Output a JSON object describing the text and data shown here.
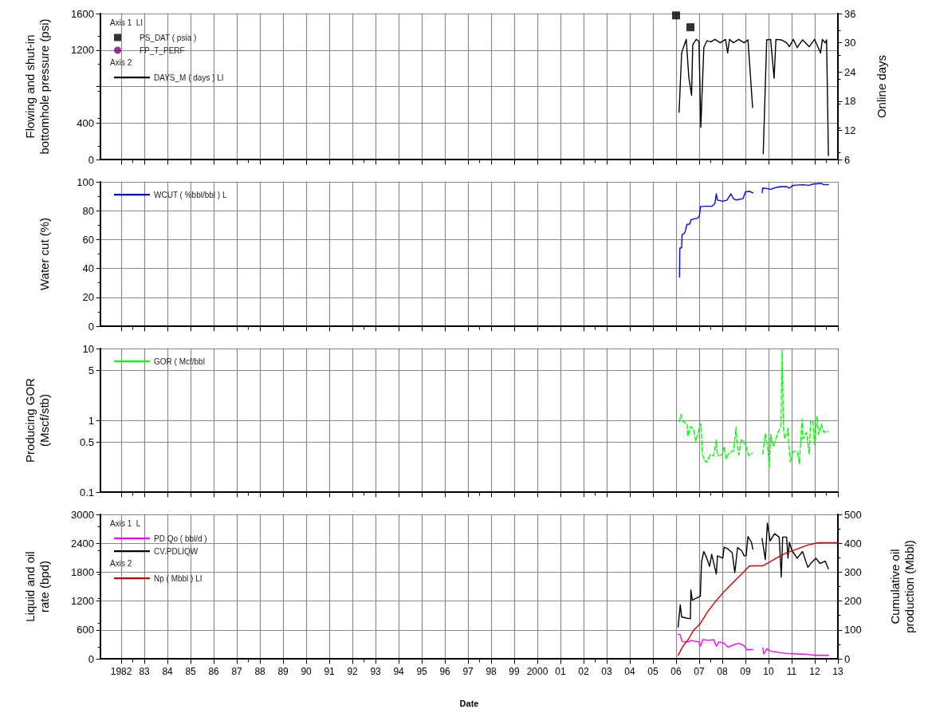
{
  "chart_data": [
    {
      "type": "line",
      "ylabel": "Flowing and shut-in\nbottomhole pressure (psi)",
      "y2label": "Online days",
      "xlim": [
        1981.1,
        2013
      ],
      "xticks": [
        {
          "value": 1982,
          "label": null
        },
        {
          "value": 1983,
          "label": null
        },
        {
          "value": 1984,
          "label": null
        },
        {
          "value": 1985,
          "label": null
        },
        {
          "value": 1986,
          "label": null
        },
        {
          "value": 1987,
          "label": null
        },
        {
          "value": 1988,
          "label": null
        },
        {
          "value": 1989,
          "label": null
        },
        {
          "value": 1990,
          "label": null
        },
        {
          "value": 1991,
          "label": null
        },
        {
          "value": 1992,
          "label": null
        },
        {
          "value": 1993,
          "label": null
        },
        {
          "value": 1994,
          "label": null
        },
        {
          "value": 1995,
          "label": null
        },
        {
          "value": 1996,
          "label": null
        },
        {
          "value": 1997,
          "label": null
        },
        {
          "value": 1998,
          "label": null
        },
        {
          "value": 1999,
          "label": null
        },
        {
          "value": 2000,
          "label": null
        },
        {
          "value": 2001,
          "label": null
        },
        {
          "value": 2002,
          "label": null
        },
        {
          "value": 2003,
          "label": null
        },
        {
          "value": 2004,
          "label": null
        },
        {
          "value": 2005,
          "label": null
        },
        {
          "value": 2006,
          "label": null
        },
        {
          "value": 2007,
          "label": null
        },
        {
          "value": 2008,
          "label": null
        },
        {
          "value": 2009,
          "label": null
        },
        {
          "value": 2010,
          "label": null
        },
        {
          "value": 2011,
          "label": null
        },
        {
          "value": 2012,
          "label": null
        },
        {
          "value": 2013,
          "label": null
        }
      ],
      "ylim": [
        0,
        1600
      ],
      "yticks": [
        0,
        400,
        {
          "value": 800,
          "label": null
        },
        1200,
        1600
      ],
      "y2lim": [
        6,
        36
      ],
      "y2ticks": [
        6,
        12,
        18,
        24,
        30,
        36
      ],
      "grid": true,
      "legend": "top left",
      "tick_labels": "y",
      "annotations": [
        "Axis 1  LI",
        "Axis 2"
      ],
      "series": [
        {
          "name": "PS_DAT ( psia )",
          "type": "scatter",
          "marker": "square",
          "color": "#000000",
          "x": [
            2006.0,
            2006.62
          ],
          "values": [
            1580,
            1450
          ]
        },
        {
          "name": "FP_T_PERF",
          "type": "scatter",
          "marker": "circle",
          "color": "#800080"
        },
        {
          "name": "DAYS_M ( days ) LI",
          "axis": "y2",
          "marker": "none",
          "color": "#000000",
          "x": [
            2006.13,
            2006.24,
            2006.3,
            2006.44,
            2006.55,
            2006.67,
            2006.72,
            2006.87,
            2006.99,
            2007.07,
            2007.2,
            2007.33,
            2007.51,
            2007.68,
            2007.91,
            2008.14,
            2008.23,
            2008.31,
            2008.48,
            2008.71,
            2008.94,
            2009.11,
            2009.31,
            2009.5,
            2009.77,
            2009.92,
            2010.09,
            2010.24,
            2010.32,
            2010.55,
            2010.78,
            2010.9,
            2011.07,
            2011.24,
            2011.47,
            2011.76,
            2011.99,
            2012.25,
            2012.33,
            2012.45,
            2012.51,
            2012.59
          ],
          "values": [
            15.7,
            27.9,
            28.8,
            30.7,
            22.9,
            19.2,
            29.6,
            30.7,
            30.3,
            12.6,
            29.0,
            30.4,
            30.2,
            30.7,
            30.0,
            30.7,
            27.9,
            30.7,
            30.0,
            30.7,
            30.0,
            30.6,
            16.7,
            null,
            7.2,
            30.6,
            30.7,
            22.7,
            30.7,
            30.6,
            30.0,
            29.2,
            30.7,
            29.0,
            30.6,
            29.2,
            30.7,
            27.9,
            30.7,
            30.0,
            30.6,
            6.8
          ]
        }
      ]
    },
    {
      "type": "line",
      "ylabel": "Water cut (%)",
      "xlim": [
        1981.1,
        2013
      ],
      "xticks": [
        {
          "value": 1982,
          "label": null
        },
        {
          "value": 1983,
          "label": null
        },
        {
          "value": 1984,
          "label": null
        },
        {
          "value": 1985,
          "label": null
        },
        {
          "value": 1986,
          "label": null
        },
        {
          "value": 1987,
          "label": null
        },
        {
          "value": 1988,
          "label": null
        },
        {
          "value": 1989,
          "label": null
        },
        {
          "value": 1990,
          "label": null
        },
        {
          "value": 1991,
          "label": null
        },
        {
          "value": 1992,
          "label": null
        },
        {
          "value": 1993,
          "label": null
        },
        {
          "value": 1994,
          "label": null
        },
        {
          "value": 1995,
          "label": null
        },
        {
          "value": 1996,
          "label": null
        },
        {
          "value": 1997,
          "label": null
        },
        {
          "value": 1998,
          "label": null
        },
        {
          "value": 1999,
          "label": null
        },
        {
          "value": 2000,
          "label": null
        },
        {
          "value": 2001,
          "label": null
        },
        {
          "value": 2002,
          "label": null
        },
        {
          "value": 2003,
          "label": null
        },
        {
          "value": 2004,
          "label": null
        },
        {
          "value": 2005,
          "label": null
        },
        {
          "value": 2006,
          "label": null
        },
        {
          "value": 2007,
          "label": null
        },
        {
          "value": 2008,
          "label": null
        },
        {
          "value": 2009,
          "label": null
        },
        {
          "value": 2010,
          "label": null
        },
        {
          "value": 2011,
          "label": null
        },
        {
          "value": 2012,
          "label": null
        },
        {
          "value": 2013,
          "label": null
        }
      ],
      "ylim": [
        0,
        100
      ],
      "yticks": [
        0,
        20,
        40,
        60,
        80,
        100
      ],
      "grid": true,
      "legend": "top left",
      "tick_labels": "y",
      "marker": "none",
      "series": [
        {
          "name": "WCUT ( %bbl/bbl ) L",
          "color": "#0000ff",
          "x": [
            2006.15,
            2006.16,
            2006.24,
            2006.26,
            2006.36,
            2006.41,
            2006.47,
            2006.59,
            2006.64,
            2006.76,
            2006.93,
            2007.01,
            2007.05,
            2007.22,
            2007.56,
            2007.68,
            2007.74,
            2007.79,
            2008.02,
            2008.2,
            2008.37,
            2008.48,
            2008.6,
            2008.89,
            2009.0,
            2009.17,
            2009.32,
            2009.5,
            2009.72,
            2009.75,
            2009.92,
            2010.09,
            2010.32,
            2010.55,
            2010.78,
            2010.9,
            2011.07,
            2011.47,
            2011.76,
            2011.93,
            2012.28,
            2012.39,
            2012.59
          ],
          "values": [
            34,
            54,
            54.4,
            63.3,
            64.3,
            66.5,
            70.6,
            70.7,
            73.5,
            74.4,
            74.8,
            76.3,
            82.8,
            83.1,
            83.1,
            85,
            91.7,
            87.4,
            86.5,
            87.4,
            91.7,
            88.3,
            87.4,
            88.3,
            93,
            93.5,
            92.4,
            null,
            92.4,
            95.7,
            95.4,
            94.8,
            96.1,
            96.7,
            96.7,
            95.7,
            97.6,
            98,
            97.6,
            98.5,
            98.9,
            98,
            98.1
          ]
        }
      ]
    },
    {
      "type": "line",
      "ylabel": "Producing GOR\n(Mscf/stb)",
      "xlim": [
        1981.1,
        2013
      ],
      "xticks": [
        {
          "value": 1982,
          "label": null
        },
        {
          "value": 1983,
          "label": null
        },
        {
          "value": 1984,
          "label": null
        },
        {
          "value": 1985,
          "label": null
        },
        {
          "value": 1986,
          "label": null
        },
        {
          "value": 1987,
          "label": null
        },
        {
          "value": 1988,
          "label": null
        },
        {
          "value": 1989,
          "label": null
        },
        {
          "value": 1990,
          "label": null
        },
        {
          "value": 1991,
          "label": null
        },
        {
          "value": 1992,
          "label": null
        },
        {
          "value": 1993,
          "label": null
        },
        {
          "value": 1994,
          "label": null
        },
        {
          "value": 1995,
          "label": null
        },
        {
          "value": 1996,
          "label": null
        },
        {
          "value": 1997,
          "label": null
        },
        {
          "value": 1998,
          "label": null
        },
        {
          "value": 1999,
          "label": null
        },
        {
          "value": 2000,
          "label": null
        },
        {
          "value": 2001,
          "label": null
        },
        {
          "value": 2002,
          "label": null
        },
        {
          "value": 2003,
          "label": null
        },
        {
          "value": 2004,
          "label": null
        },
        {
          "value": 2005,
          "label": null
        },
        {
          "value": 2006,
          "label": null
        },
        {
          "value": 2007,
          "label": null
        },
        {
          "value": 2008,
          "label": null
        },
        {
          "value": 2009,
          "label": null
        },
        {
          "value": 2010,
          "label": null
        },
        {
          "value": 2011,
          "label": null
        },
        {
          "value": 2012,
          "label": null
        },
        {
          "value": 2013,
          "label": null
        }
      ],
      "ylim": [
        0.1,
        10
      ],
      "yticks": [
        0.1,
        0.5,
        1,
        5,
        10
      ],
      "log": "y",
      "grid": true,
      "legend": "top left",
      "tick_labels": "y",
      "marker": "none",
      "line_style": "dashed",
      "series": [
        {
          "name": "GOR ( Mcf/bbl",
          "color": "#00ff00",
          "x": [
            2006.15,
            2006.21,
            2006.3,
            2006.47,
            2006.51,
            2006.64,
            2006.76,
            2006.85,
            2006.99,
            2007.08,
            2007.13,
            2007.22,
            2007.33,
            2007.47,
            2007.62,
            2007.74,
            2007.79,
            2007.97,
            2008.08,
            2008.16,
            2008.31,
            2008.48,
            2008.6,
            2008.62,
            2008.71,
            2008.83,
            2009.0,
            2009.15,
            2009.31,
            2009.5,
            2009.75,
            2009.86,
            2009.98,
            2010.03,
            2010.09,
            2010.21,
            2010.3,
            2010.41,
            2010.53,
            2010.59,
            2010.64,
            2010.7,
            2010.84,
            2010.87,
            2010.95,
            2011.07,
            2011.24,
            2011.33,
            2011.45,
            2011.49,
            2011.64,
            2011.76,
            2011.82,
            2011.91,
            2011.99,
            2012.1,
            2012.16,
            2012.28,
            2012.39,
            2012.51,
            2012.59
          ],
          "values": [
            0.96,
            1.21,
            0.96,
            0.9,
            0.6,
            0.82,
            0.74,
            0.51,
            0.74,
            0.9,
            0.34,
            0.28,
            0.26,
            0.33,
            0.32,
            0.53,
            0.32,
            0.33,
            0.43,
            0.29,
            0.36,
            0.37,
            0.81,
            0.53,
            0.33,
            0.55,
            0.45,
            0.32,
            0.35,
            null,
            0.34,
            0.65,
            0.37,
            0.22,
            0.63,
            0.43,
            0.53,
            0.68,
            0.81,
            9.6,
            0.81,
            0.55,
            0.77,
            0.48,
            0.26,
            0.37,
            0.37,
            0.25,
            1.04,
            0.55,
            0.68,
            0.34,
            0.96,
            1.0,
            0.46,
            1.14,
            0.63,
            0.88,
            0.68,
            0.71,
            0.69
          ]
        }
      ]
    },
    {
      "type": "line",
      "ylabel": "Liquid and oil\nrate (bpd)",
      "y2label": "Cumulative oil\nproduction (Mbbl)",
      "xlabel": "Date",
      "xlim": [
        1981.1,
        2013
      ],
      "xticks": [
        {
          "value": 1982,
          "label": "1982"
        },
        {
          "value": 1983,
          "label": "83"
        },
        {
          "value": 1984,
          "label": "84"
        },
        {
          "value": 1985,
          "label": "85"
        },
        {
          "value": 1986,
          "label": "86"
        },
        {
          "value": 1987,
          "label": "87"
        },
        {
          "value": 1988,
          "label": "88"
        },
        {
          "value": 1989,
          "label": "89"
        },
        {
          "value": 1990,
          "label": "90"
        },
        {
          "value": 1991,
          "label": "91"
        },
        {
          "value": 1992,
          "label": "92"
        },
        {
          "value": 1993,
          "label": "93"
        },
        {
          "value": 1994,
          "label": "94"
        },
        {
          "value": 1995,
          "label": "95"
        },
        {
          "value": 1996,
          "label": "96"
        },
        {
          "value": 1997,
          "label": "97"
        },
        {
          "value": 1998,
          "label": "98"
        },
        {
          "value": 1999,
          "label": "99"
        },
        {
          "value": 2000,
          "label": "2000"
        },
        {
          "value": 2001,
          "label": "01"
        },
        {
          "value": 2002,
          "label": "02"
        },
        {
          "value": 2003,
          "label": "03"
        },
        {
          "value": 2004,
          "label": "04"
        },
        {
          "value": 2005,
          "label": "05"
        },
        {
          "value": 2006,
          "label": "06"
        },
        {
          "value": 2007,
          "label": "07"
        },
        {
          "value": 2008,
          "label": "08"
        },
        {
          "value": 2009,
          "label": "09"
        },
        {
          "value": 2010,
          "label": "10"
        },
        {
          "value": 2011,
          "label": "11"
        },
        {
          "value": 2012,
          "label": "12"
        },
        {
          "value": 2013,
          "label": "13"
        }
      ],
      "ylim": [
        0,
        3000
      ],
      "yticks": [
        0,
        600,
        1200,
        1800,
        2400,
        3000
      ],
      "y2lim": [
        0,
        500
      ],
      "y2ticks": [
        0,
        100,
        200,
        300,
        400,
        500
      ],
      "grid": true,
      "legend": "top left",
      "marker": "none",
      "annotations": [
        "Axis 1  L",
        "Axis 2"
      ],
      "series": [
        {
          "name": "PD Qo ( bbl/d )",
          "color": "#ff00ff",
          "x": [
            2006.09,
            2006.18,
            2006.24,
            2006.3,
            2006.53,
            2006.64,
            2006.99,
            2007.05,
            2007.16,
            2007.39,
            2007.62,
            2007.74,
            2007.85,
            2008.08,
            2008.25,
            2008.48,
            2008.71,
            2008.94,
            2009.06,
            2009.32,
            2009.5,
            2009.75,
            2009.8,
            2009.92,
            2010.09,
            2010.44,
            2010.78,
            2011.24,
            2011.7,
            2012.05,
            2012.59
          ],
          "values": [
            510,
            500,
            380,
            350,
            350,
            380,
            350,
            260,
            400,
            380,
            400,
            260,
            350,
            320,
            240,
            290,
            320,
            270,
            190,
            190,
            null,
            220,
            100,
            210,
            160,
            130,
            110,
            100,
            90,
            70,
            70
          ]
        },
        {
          "name": "CV.PDLIQW",
          "color": "#000000",
          "x": [
            2006.09,
            2006.18,
            2006.24,
            2006.41,
            2006.62,
            2006.64,
            2006.7,
            2007.05,
            2007.1,
            2007.2,
            2007.33,
            2007.45,
            2007.54,
            2007.74,
            2007.79,
            2008.02,
            2008.08,
            2008.25,
            2008.43,
            2008.54,
            2008.66,
            2008.83,
            2008.94,
            2009.03,
            2009.11,
            2009.26,
            2009.32,
            2009.5,
            2009.72,
            2009.86,
            2009.95,
            2010.07,
            2010.26,
            2010.46,
            2010.55,
            2010.61,
            2010.78,
            2010.84,
            2010.9,
            2011.01,
            2011.24,
            2011.47,
            2011.7,
            2011.82,
            2012.05,
            2012.22,
            2012.45,
            2012.59
          ],
          "values": [
            660,
            1120,
            870,
            850,
            830,
            1430,
            1220,
            1300,
            2010,
            2230,
            2090,
            1920,
            2170,
            1760,
            2140,
            2090,
            2320,
            2280,
            2200,
            1790,
            2310,
            2250,
            2140,
            2140,
            2540,
            2420,
            2280,
            null,
            2500,
            2060,
            2820,
            2450,
            2600,
            2530,
            1700,
            2530,
            2530,
            2090,
            2420,
            2250,
            2090,
            2230,
            1900,
            1980,
            2090,
            1980,
            2030,
            1870
          ]
        },
        {
          "name": "Np ( Mbbl ) LI",
          "axis": "y2",
          "color": "#cc0000",
          "x": [
            2006.09,
            2006.3,
            2006.53,
            2006.76,
            2007.05,
            2007.33,
            2007.68,
            2008.08,
            2008.48,
            2008.94,
            2009.17,
            2009.34,
            2009.75,
            2009.98,
            2010.32,
            2010.78,
            2011.24,
            2011.7,
            2012.16,
            2012.97
          ],
          "values": [
            12,
            44,
            67,
            99,
            122,
            159,
            196,
            233,
            265,
            302,
            321,
            322,
            322,
            332,
            348,
            367,
            380,
            394,
            402,
            402
          ]
        }
      ]
    }
  ]
}
